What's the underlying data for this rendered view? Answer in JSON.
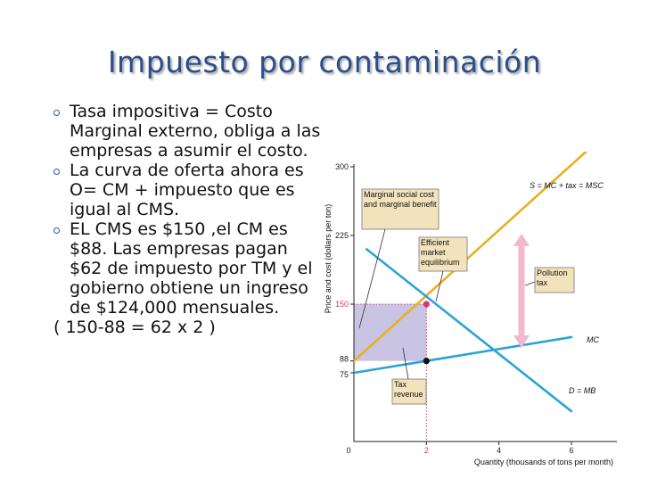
{
  "slide": {
    "title": "Impuesto por contaminación",
    "bullets": [
      "Tasa impositiva = Costo Marginal externo, obliga a las empresas a asumir el costo.",
      "La curva de oferta ahora es O= CM + impuesto que es igual al CMS.",
      "EL CMS es $150 ,el CM es $88. Las empresas pagan $62 de impuesto por TM y el gobierno obtiene un ingreso de $124,000 mensuales."
    ],
    "footer": "( 150-88 = 62 x 2 )"
  },
  "chart_data": {
    "type": "line",
    "xlabel": "Quantity (thousands of tons per month)",
    "ylabel": "Price and cost (dollars per ton)",
    "xlim": [
      0,
      6.5
    ],
    "ylim": [
      0,
      300
    ],
    "x_ticks": [
      0,
      2,
      4,
      6
    ],
    "y_ticks": [
      75,
      88,
      150,
      225,
      300
    ],
    "highlight_ticks": {
      "x": 2,
      "y": 150,
      "color": "#e0317a"
    },
    "series": [
      {
        "name": "S = MC + tax = MSC",
        "color": "#e8b020",
        "points": [
          [
            0,
            88
          ],
          [
            6.5,
            320
          ]
        ]
      },
      {
        "name": "MC",
        "color": "#2aa4d8",
        "points": [
          [
            0,
            75
          ],
          [
            6,
            114
          ]
        ]
      },
      {
        "name": "D = MB",
        "color": "#2aa4d8",
        "points": [
          [
            0.35,
            210
          ],
          [
            6,
            33
          ]
        ]
      }
    ],
    "points": [
      {
        "x": 2,
        "y": 150,
        "color": "#e0317a"
      },
      {
        "x": 2,
        "y": 88,
        "color": "#111111"
      }
    ],
    "tax_revenue_area": {
      "x": [
        0,
        2
      ],
      "y": [
        88,
        150
      ],
      "color": "#c9c4e3"
    },
    "annotations": {
      "supply_label": "S = MC + tax = MSC",
      "mc_label": "MC",
      "demand_label": "D = MB",
      "marginal_social": "Marginal social cost and marginal benefit",
      "efficient": "Efficient market equilibrium",
      "pollution_tax": "Pollution tax",
      "tax_revenue": "Tax revenue"
    }
  }
}
